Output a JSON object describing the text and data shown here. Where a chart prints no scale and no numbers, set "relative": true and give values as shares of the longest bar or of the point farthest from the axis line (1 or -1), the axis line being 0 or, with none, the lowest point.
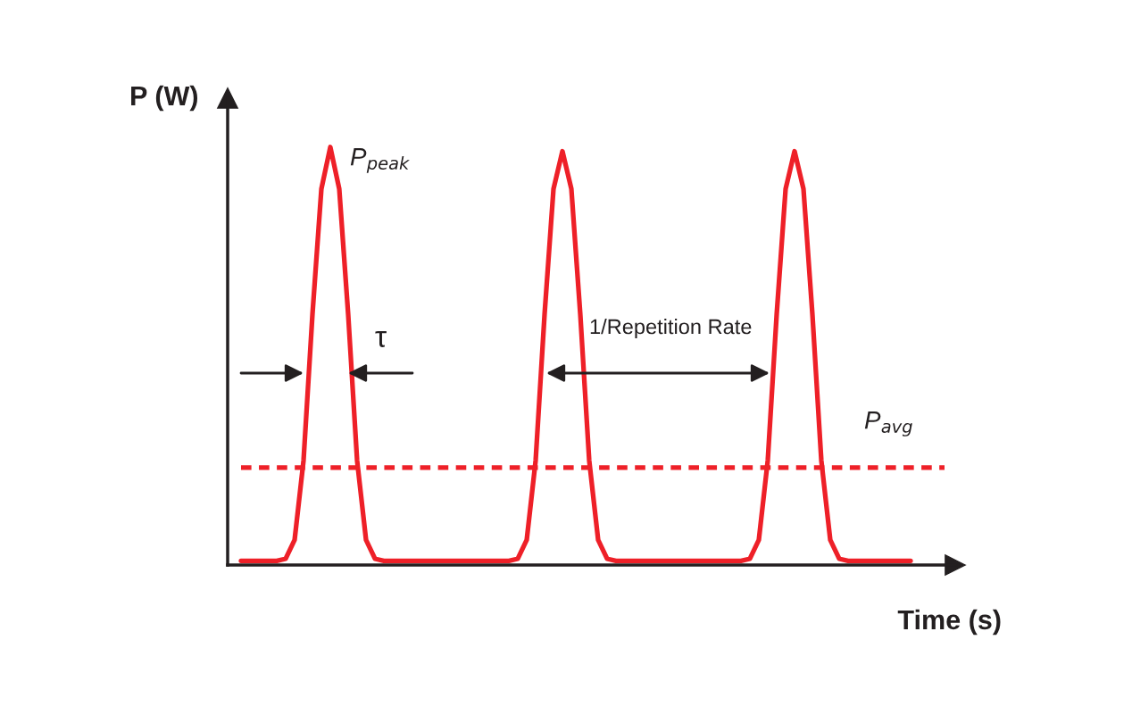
{
  "chart_data": {
    "type": "line",
    "relative": true,
    "xlabel": "Time (s)",
    "ylabel": "P (W)",
    "categories": [
      null,
      null,
      null,
      null,
      null,
      null,
      null,
      null,
      null,
      null,
      null,
      null,
      null,
      null,
      null,
      null,
      null,
      null,
      null,
      null,
      null,
      null,
      null,
      null,
      null,
      null,
      null,
      null,
      null,
      null,
      null,
      null,
      null,
      null,
      null,
      null,
      null,
      null,
      null,
      null,
      null,
      null,
      null,
      null,
      null,
      null,
      null,
      null,
      null,
      null,
      null,
      null,
      null,
      null,
      null,
      null,
      null,
      null,
      null,
      null,
      null,
      null,
      null,
      null,
      null,
      null,
      null,
      null,
      null,
      null,
      null,
      null,
      null,
      null,
      null,
      null
    ],
    "series": [
      {
        "color": "#ee2028",
        "values": [
          0.01,
          0.01,
          0.01,
          0.01,
          0.01,
          0.015,
          0.06,
          0.25,
          0.6,
          0.9,
          1,
          0.9,
          0.6,
          0.25,
          0.06,
          0.015,
          0.01,
          0.01,
          0.01,
          0.01,
          0.01,
          0.01,
          0.01,
          0.01,
          0.01,
          0.01,
          0.01,
          0.01,
          0.01,
          0.01,
          0.01,
          0.015,
          0.06,
          0.25,
          0.6,
          0.9,
          0.99,
          0.9,
          0.6,
          0.25,
          0.06,
          0.015,
          0.01,
          0.01,
          0.01,
          0.01,
          0.01,
          0.01,
          0.01,
          0.01,
          0.01,
          0.01,
          0.01,
          0.01,
          0.01,
          0.01,
          0.01,
          0.015,
          0.06,
          0.25,
          0.6,
          0.9,
          0.99,
          0.9,
          0.6,
          0.25,
          0.06,
          0.015,
          0.01,
          0.01,
          0.01,
          0.01,
          0.01,
          0.01,
          0.01,
          0.01
        ]
      }
    ],
    "ref_lines": [
      {
        "axis": "y",
        "value": 0.233,
        "label": "P$_{avg}$",
        "color": "#ee2028",
        "line_style": "dashed"
      }
    ],
    "annotations": [
      "P$_{peak}$",
      "τ",
      "1/Repetition Rate"
    ],
    "legend": false
  }
}
